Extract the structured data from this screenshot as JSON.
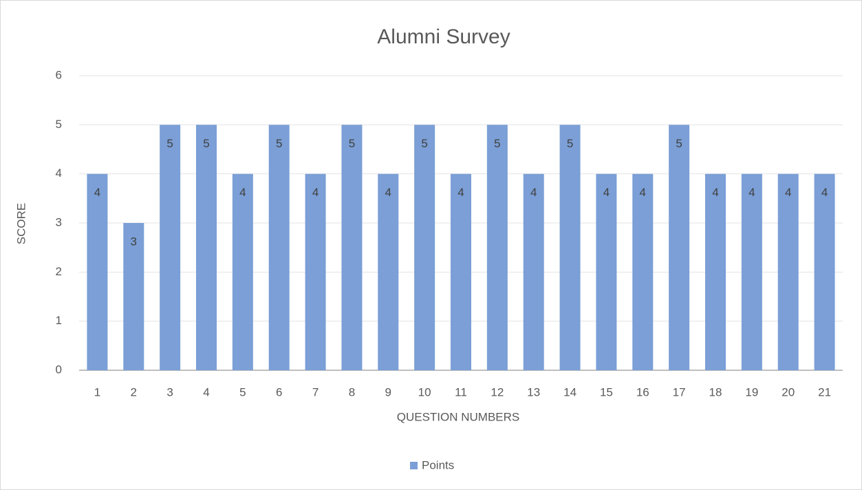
{
  "chart_data": {
    "type": "bar",
    "title": "Alumni Survey",
    "x_label": "QUESTION NUMBERS",
    "y_label": "SCORE",
    "categories": [
      1,
      2,
      3,
      4,
      5,
      6,
      7,
      8,
      9,
      10,
      11,
      12,
      13,
      14,
      15,
      16,
      17,
      18,
      19,
      20,
      21
    ],
    "series": [
      {
        "name": "Points",
        "color": "#7b9fd6",
        "values": [
          4,
          3,
          5,
          5,
          4,
          5,
          4,
          5,
          4,
          5,
          4,
          5,
          4,
          5,
          4,
          4,
          5,
          4,
          4,
          4,
          4
        ]
      }
    ],
    "ylim": [
      0,
      6
    ],
    "yticks": [
      0,
      1,
      2,
      3,
      4,
      5,
      6
    ],
    "grid": true,
    "data_labels": true,
    "legend": "bottom"
  }
}
